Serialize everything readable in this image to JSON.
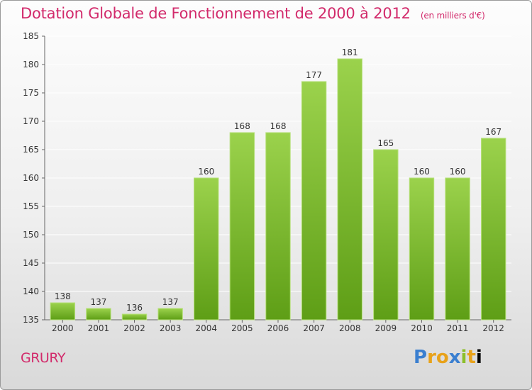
{
  "title": "Dotation Globale de Fonctionnement de 2000 à 2012",
  "subtitle": "(en milliers d'€)",
  "commune": "GRURY",
  "logo": "Proxiti",
  "colors": {
    "title": "#d22a6b",
    "bar_top": "#9bd24c",
    "bar_bottom": "#5e9e16"
  },
  "chart_data": {
    "type": "bar",
    "title": "Dotation Globale de Fonctionnement de 2000 à 2012",
    "subtitle": "(en milliers d'€)",
    "categories": [
      "2000",
      "2001",
      "2002",
      "2003",
      "2004",
      "2005",
      "2006",
      "2007",
      "2008",
      "2009",
      "2010",
      "2011",
      "2012"
    ],
    "values": [
      138,
      137,
      136,
      137,
      160,
      168,
      168,
      177,
      181,
      165,
      160,
      160,
      167
    ],
    "ylim": [
      135,
      185
    ],
    "yticks": [
      135,
      140,
      145,
      150,
      155,
      160,
      165,
      170,
      175,
      180,
      185
    ],
    "grid": true,
    "xlabel": "",
    "ylabel": ""
  }
}
